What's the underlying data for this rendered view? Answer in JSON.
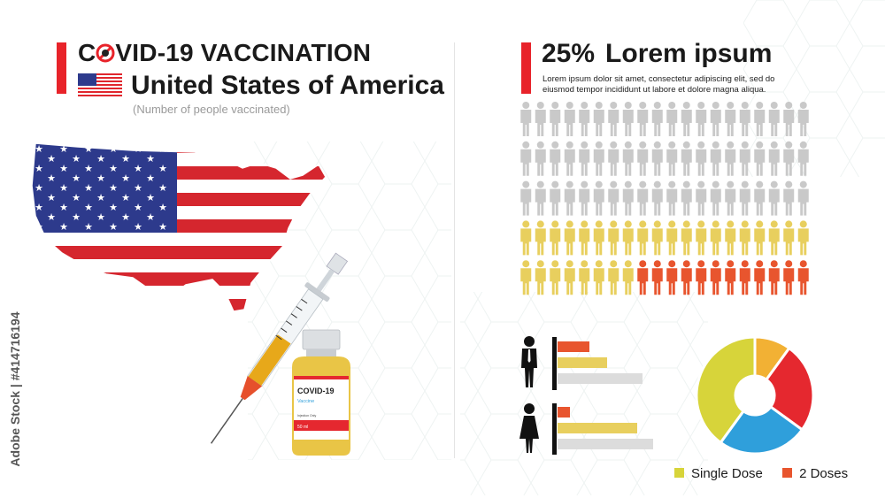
{
  "header": {
    "title_prefix": "C",
    "title_suffix": "VID-19 VACCINATION",
    "country": "United States of America",
    "subtitle": "(Number of people vaccinated)"
  },
  "stat": {
    "percent": "25%",
    "title": "Lorem ipsum",
    "description": "Lorem ipsum dolor sit amet, consectetur adipiscing elit, sed do eiusmod tempor incididunt ut labore et dolore magna aliqua."
  },
  "vaccine": {
    "name": "COVID-19",
    "type": "Vaccine",
    "note": "Injection Only",
    "volume": "50 ml"
  },
  "watermark": "Adobe Stock | #414716194",
  "colors": {
    "accent": "#e8232a",
    "gray_person": "#c9c9c9",
    "single_dose": "#e8cf5e",
    "two_doses": "#e8552e",
    "pie_yellow": "#d7d43a",
    "pie_orange": "#f2b134",
    "pie_red": "#e5282f",
    "pie_blue": "#2f9fdb"
  },
  "chart_data": [
    {
      "type": "pictograph",
      "rows": 5,
      "cols": 20,
      "total": 100,
      "counts": {
        "unvaccinated": 60,
        "single_dose": 28,
        "two_doses": 12
      }
    },
    {
      "type": "bar",
      "orientation": "horizontal",
      "groups": [
        {
          "icon": "man-icon",
          "values": [
            18,
            28,
            48
          ]
        },
        {
          "icon": "woman-icon",
          "values": [
            7,
            45,
            54
          ]
        }
      ],
      "colors": [
        "#e8552e",
        "#e8cf5e",
        "#dcdcdc"
      ]
    },
    {
      "type": "pie",
      "donut": true,
      "values": [
        10,
        25,
        25,
        40
      ],
      "colors": [
        "#f2b134",
        "#e5282f",
        "#2f9fdb",
        "#d7d43a"
      ],
      "legend": [
        {
          "label": "Single Dose",
          "color": "#d7d43a"
        },
        {
          "label": "2 Doses",
          "color": "#e8552e"
        }
      ]
    }
  ]
}
